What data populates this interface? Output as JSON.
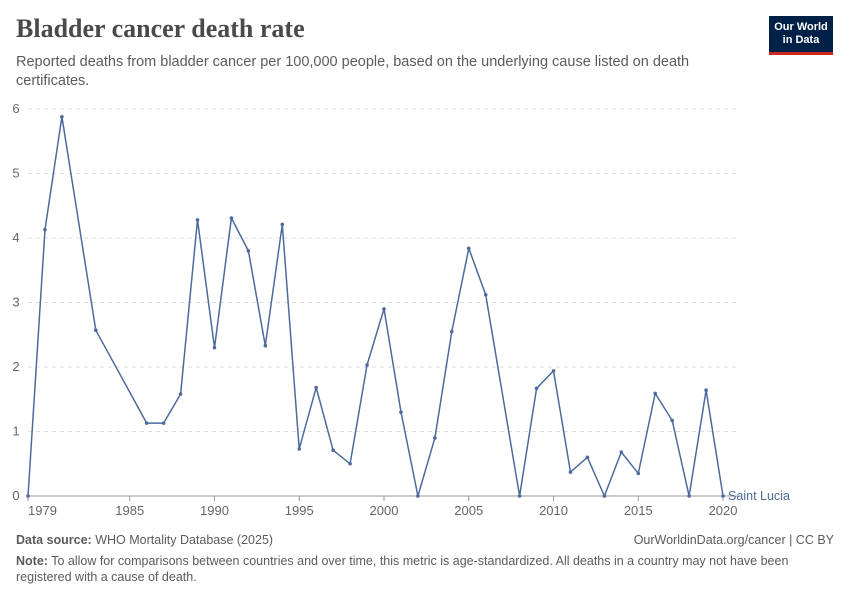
{
  "header": {
    "title": "Bladder cancer death rate",
    "subtitle": "Reported deaths from bladder cancer per 100,000 people, based on the underlying cause listed on death certificates.",
    "logo_line1": "Our World",
    "logo_line2": "in Data"
  },
  "footer": {
    "source_label": "Data source:",
    "source_text": "WHO Mortality Database (2025)",
    "url_text": "OurWorldinData.org/cancer | CC BY",
    "note_label": "Note:",
    "note_text": "To allow for comparisons between countries and over time, this metric is age-standardized. All deaths in a country may not have been registered with a cause of death."
  },
  "chart_data": {
    "type": "line",
    "title": "Bladder cancer death rate",
    "xlabel": "",
    "ylabel": "",
    "xlim": [
      1979,
      2021
    ],
    "ylim": [
      0,
      6
    ],
    "x_ticks": [
      1979,
      1985,
      1990,
      1995,
      2000,
      2005,
      2010,
      2015,
      2020
    ],
    "y_ticks": [
      0,
      1,
      2,
      3,
      4,
      5,
      6
    ],
    "grid": "horizontal dashed",
    "series": [
      {
        "name": "Saint Lucia",
        "color": "#4c6a9c",
        "x": [
          1979,
          1980,
          1981,
          1983,
          1986,
          1987,
          1988,
          1989,
          1990,
          1991,
          1992,
          1993,
          1994,
          1995,
          1996,
          1997,
          1998,
          1999,
          2000,
          2001,
          2002,
          2003,
          2004,
          2005,
          2006,
          2008,
          2009,
          2010,
          2011,
          2012,
          2013,
          2014,
          2015,
          2016,
          2017,
          2018,
          2019,
          2020
        ],
        "values": [
          0,
          4.13,
          5.88,
          2.57,
          1.13,
          1.13,
          1.58,
          4.28,
          2.3,
          4.31,
          3.8,
          2.33,
          4.21,
          0.73,
          1.68,
          0.71,
          0.5,
          2.03,
          2.9,
          1.3,
          0,
          0.9,
          2.55,
          3.84,
          3.12,
          0,
          1.67,
          1.94,
          0.37,
          0.6,
          0,
          0.68,
          0.35,
          1.59,
          1.17,
          0,
          1.64,
          0
        ]
      }
    ]
  }
}
